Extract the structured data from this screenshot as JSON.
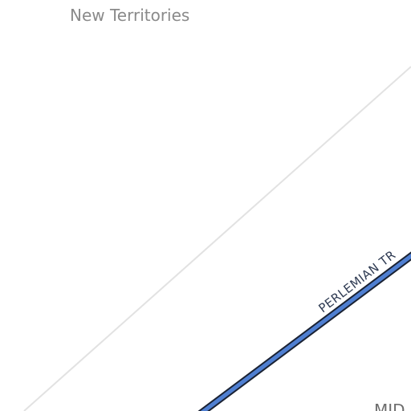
{
  "map": {
    "region_label": "New Territories",
    "road_label": "PERLEMIAN TR",
    "corner_label": "MID",
    "colors": {
      "background": "#ffffff",
      "thin_road": "#e2e2e2",
      "main_road_fill": "#4f7fd1",
      "main_road_casing": "#1a2233",
      "region_text": "#8a8a8a",
      "road_text": "#2e3a52"
    }
  }
}
